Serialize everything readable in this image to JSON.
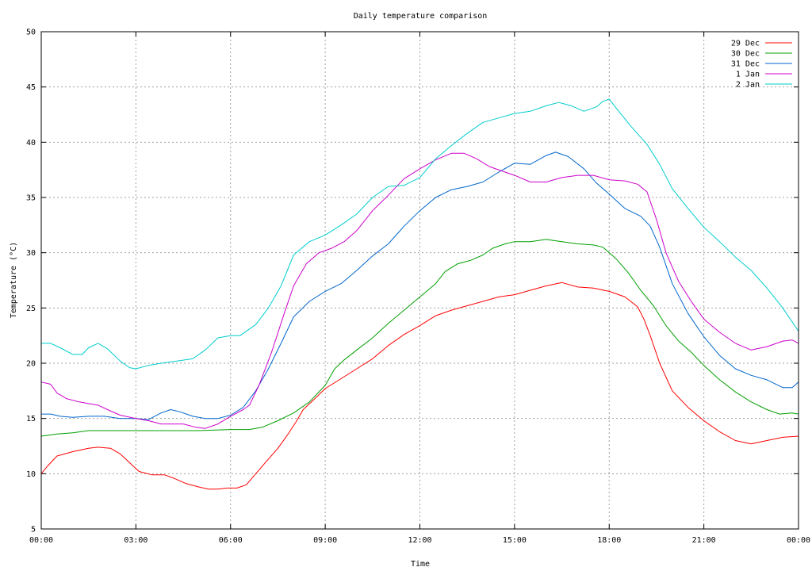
{
  "chart_data": {
    "type": "line",
    "title": "Daily temperature comparison",
    "xlabel": "Time",
    "ylabel": "Temperature (°C)",
    "xlim": [
      0,
      24
    ],
    "ylim": [
      5,
      50
    ],
    "x_ticks": [
      {
        "value": 0,
        "label": "00:00"
      },
      {
        "value": 3,
        "label": "03:00"
      },
      {
        "value": 6,
        "label": "06:00"
      },
      {
        "value": 9,
        "label": "09:00"
      },
      {
        "value": 12,
        "label": "12:00"
      },
      {
        "value": 15,
        "label": "15:00"
      },
      {
        "value": 18,
        "label": "18:00"
      },
      {
        "value": 21,
        "label": "21:00"
      },
      {
        "value": 24,
        "label": "00:00"
      }
    ],
    "y_ticks": [
      5,
      10,
      15,
      20,
      25,
      30,
      35,
      40,
      45,
      50
    ],
    "grid": true,
    "legend_position": "top-right",
    "series": [
      {
        "name": "29 Dec",
        "color": "#ff0000",
        "points": [
          [
            0,
            10
          ],
          [
            0.2,
            10.7
          ],
          [
            0.5,
            11.6
          ],
          [
            1,
            12
          ],
          [
            1.5,
            12.3
          ],
          [
            1.8,
            12.4
          ],
          [
            2.2,
            12.3
          ],
          [
            2.5,
            11.8
          ],
          [
            2.8,
            11
          ],
          [
            3.1,
            10.2
          ],
          [
            3.5,
            9.9
          ],
          [
            3.9,
            9.9
          ],
          [
            4.2,
            9.6
          ],
          [
            4.6,
            9.1
          ],
          [
            5,
            8.8
          ],
          [
            5.3,
            8.6
          ],
          [
            5.6,
            8.6
          ],
          [
            5.9,
            8.7
          ],
          [
            6.2,
            8.7
          ],
          [
            6.5,
            9
          ],
          [
            6.8,
            10
          ],
          [
            7.1,
            11
          ],
          [
            7.5,
            12.3
          ],
          [
            7.8,
            13.5
          ],
          [
            8.1,
            14.8
          ],
          [
            8.3,
            15.8
          ],
          [
            8.6,
            16.6
          ],
          [
            9,
            17.7
          ],
          [
            9.5,
            18.6
          ],
          [
            10,
            19.5
          ],
          [
            10.5,
            20.4
          ],
          [
            11,
            21.6
          ],
          [
            11.5,
            22.6
          ],
          [
            12,
            23.4
          ],
          [
            12.5,
            24.3
          ],
          [
            13,
            24.8
          ],
          [
            13.5,
            25.2
          ],
          [
            14,
            25.6
          ],
          [
            14.5,
            26
          ],
          [
            15,
            26.2
          ],
          [
            15.5,
            26.6
          ],
          [
            16,
            27
          ],
          [
            16.5,
            27.3
          ],
          [
            17,
            26.9
          ],
          [
            17.5,
            26.8
          ],
          [
            18,
            26.5
          ],
          [
            18.5,
            26
          ],
          [
            18.9,
            25.1
          ],
          [
            19.1,
            24
          ],
          [
            19.3,
            22.5
          ],
          [
            19.6,
            20
          ],
          [
            20,
            17.5
          ],
          [
            20.5,
            16
          ],
          [
            21,
            14.8
          ],
          [
            21.5,
            13.8
          ],
          [
            22,
            13
          ],
          [
            22.5,
            12.7
          ],
          [
            23,
            13
          ],
          [
            23.5,
            13.3
          ],
          [
            24,
            13.4
          ]
        ]
      },
      {
        "name": "30 Dec",
        "color": "#00a000",
        "points": [
          [
            0,
            13.4
          ],
          [
            0.5,
            13.6
          ],
          [
            1,
            13.7
          ],
          [
            1.5,
            13.9
          ],
          [
            2,
            13.9
          ],
          [
            3,
            13.9
          ],
          [
            4,
            13.9
          ],
          [
            5,
            13.9
          ],
          [
            6,
            14
          ],
          [
            6.6,
            14
          ],
          [
            7,
            14.2
          ],
          [
            7.5,
            14.8
          ],
          [
            8,
            15.5
          ],
          [
            8.5,
            16.5
          ],
          [
            9,
            18
          ],
          [
            9.3,
            19.5
          ],
          [
            9.6,
            20.3
          ],
          [
            10,
            21.2
          ],
          [
            10.5,
            22.3
          ],
          [
            11,
            23.6
          ],
          [
            11.5,
            24.8
          ],
          [
            12,
            26
          ],
          [
            12.5,
            27.2
          ],
          [
            12.8,
            28.3
          ],
          [
            13.2,
            29
          ],
          [
            13.6,
            29.3
          ],
          [
            14,
            29.8
          ],
          [
            14.3,
            30.4
          ],
          [
            14.7,
            30.8
          ],
          [
            15,
            31
          ],
          [
            15.5,
            31
          ],
          [
            16,
            31.2
          ],
          [
            16.5,
            31
          ],
          [
            17,
            30.8
          ],
          [
            17.5,
            30.7
          ],
          [
            17.8,
            30.5
          ],
          [
            18.2,
            29.5
          ],
          [
            18.6,
            28.2
          ],
          [
            19,
            26.6
          ],
          [
            19.4,
            25.2
          ],
          [
            19.8,
            23.4
          ],
          [
            20.2,
            22
          ],
          [
            20.6,
            21
          ],
          [
            21,
            19.8
          ],
          [
            21.5,
            18.5
          ],
          [
            22,
            17.4
          ],
          [
            22.5,
            16.5
          ],
          [
            23,
            15.8
          ],
          [
            23.4,
            15.4
          ],
          [
            23.8,
            15.5
          ],
          [
            24,
            15.4
          ]
        ]
      },
      {
        "name": "31 Dec",
        "color": "#0066cc",
        "points": [
          [
            0,
            15.4
          ],
          [
            0.3,
            15.4
          ],
          [
            0.6,
            15.2
          ],
          [
            1,
            15.1
          ],
          [
            1.5,
            15.2
          ],
          [
            2,
            15.2
          ],
          [
            2.5,
            15
          ],
          [
            3,
            15
          ],
          [
            3.4,
            14.9
          ],
          [
            3.8,
            15.5
          ],
          [
            4.1,
            15.8
          ],
          [
            4.4,
            15.6
          ],
          [
            4.8,
            15.2
          ],
          [
            5.2,
            15
          ],
          [
            5.6,
            15
          ],
          [
            6,
            15.3
          ],
          [
            6.4,
            16
          ],
          [
            6.8,
            17.5
          ],
          [
            7.2,
            19.5
          ],
          [
            7.6,
            21.8
          ],
          [
            8,
            24.2
          ],
          [
            8.5,
            25.6
          ],
          [
            9,
            26.5
          ],
          [
            9.5,
            27.2
          ],
          [
            10,
            28.4
          ],
          [
            10.5,
            29.7
          ],
          [
            11,
            30.8
          ],
          [
            11.5,
            32.4
          ],
          [
            12,
            33.8
          ],
          [
            12.5,
            35
          ],
          [
            13,
            35.7
          ],
          [
            13.5,
            36
          ],
          [
            14,
            36.4
          ],
          [
            14.5,
            37.3
          ],
          [
            15,
            38.1
          ],
          [
            15.5,
            38
          ],
          [
            16,
            38.8
          ],
          [
            16.3,
            39.1
          ],
          [
            16.7,
            38.7
          ],
          [
            17.2,
            37.6
          ],
          [
            17.6,
            36.3
          ],
          [
            18,
            35.3
          ],
          [
            18.5,
            34
          ],
          [
            19,
            33.3
          ],
          [
            19.3,
            32.4
          ],
          [
            19.6,
            30.5
          ],
          [
            20,
            27.2
          ],
          [
            20.5,
            24.5
          ],
          [
            21,
            22.4
          ],
          [
            21.5,
            20.7
          ],
          [
            22,
            19.5
          ],
          [
            22.5,
            18.9
          ],
          [
            23,
            18.5
          ],
          [
            23.5,
            17.8
          ],
          [
            23.8,
            17.8
          ],
          [
            24,
            18.3
          ]
        ]
      },
      {
        "name": "1 Jan",
        "color": "#cc00cc",
        "points": [
          [
            0,
            18.3
          ],
          [
            0.3,
            18.1
          ],
          [
            0.5,
            17.3
          ],
          [
            0.8,
            16.8
          ],
          [
            1.2,
            16.5
          ],
          [
            1.8,
            16.2
          ],
          [
            2.1,
            15.8
          ],
          [
            2.5,
            15.3
          ],
          [
            3,
            15
          ],
          [
            3.4,
            14.8
          ],
          [
            3.8,
            14.5
          ],
          [
            4.2,
            14.5
          ],
          [
            4.5,
            14.5
          ],
          [
            4.9,
            14.2
          ],
          [
            5.2,
            14.1
          ],
          [
            5.6,
            14.5
          ],
          [
            6,
            15.2
          ],
          [
            6.4,
            15.8
          ],
          [
            6.6,
            16.2
          ],
          [
            6.9,
            18
          ],
          [
            7.3,
            21
          ],
          [
            7.7,
            24.5
          ],
          [
            8,
            27
          ],
          [
            8.4,
            29
          ],
          [
            8.8,
            30
          ],
          [
            9.2,
            30.4
          ],
          [
            9.6,
            31
          ],
          [
            10,
            32
          ],
          [
            10.5,
            33.8
          ],
          [
            11,
            35.2
          ],
          [
            11.5,
            36.7
          ],
          [
            12,
            37.6
          ],
          [
            12.5,
            38.4
          ],
          [
            13,
            39
          ],
          [
            13.4,
            39
          ],
          [
            13.8,
            38.5
          ],
          [
            14.2,
            37.8
          ],
          [
            14.6,
            37.4
          ],
          [
            15,
            37
          ],
          [
            15.5,
            36.4
          ],
          [
            16,
            36.4
          ],
          [
            16.5,
            36.8
          ],
          [
            17,
            37
          ],
          [
            17.5,
            37
          ],
          [
            18,
            36.6
          ],
          [
            18.5,
            36.5
          ],
          [
            18.9,
            36.2
          ],
          [
            19.2,
            35.5
          ],
          [
            19.5,
            33
          ],
          [
            19.8,
            30
          ],
          [
            20.2,
            27.4
          ],
          [
            20.6,
            25.6
          ],
          [
            21,
            24
          ],
          [
            21.5,
            22.8
          ],
          [
            22,
            21.8
          ],
          [
            22.5,
            21.2
          ],
          [
            23,
            21.5
          ],
          [
            23.5,
            22
          ],
          [
            23.8,
            22.1
          ],
          [
            24,
            21.8
          ]
        ]
      },
      {
        "name": "2 Jan",
        "color": "#00cccc",
        "points": [
          [
            0,
            21.8
          ],
          [
            0.3,
            21.8
          ],
          [
            0.6,
            21.4
          ],
          [
            1,
            20.8
          ],
          [
            1.3,
            20.8
          ],
          [
            1.5,
            21.4
          ],
          [
            1.8,
            21.8
          ],
          [
            2.1,
            21.3
          ],
          [
            2.5,
            20.2
          ],
          [
            2.8,
            19.6
          ],
          [
            3,
            19.5
          ],
          [
            3.4,
            19.8
          ],
          [
            3.8,
            20
          ],
          [
            4.3,
            20.2
          ],
          [
            4.8,
            20.4
          ],
          [
            5.2,
            21.2
          ],
          [
            5.6,
            22.3
          ],
          [
            6,
            22.5
          ],
          [
            6.3,
            22.5
          ],
          [
            6.8,
            23.5
          ],
          [
            7.2,
            25
          ],
          [
            7.6,
            27
          ],
          [
            8,
            29.8
          ],
          [
            8.5,
            31
          ],
          [
            9,
            31.6
          ],
          [
            9.5,
            32.5
          ],
          [
            10,
            33.5
          ],
          [
            10.5,
            35
          ],
          [
            11,
            36
          ],
          [
            11.5,
            36.1
          ],
          [
            12,
            36.8
          ],
          [
            12.5,
            38.5
          ],
          [
            13,
            39.7
          ],
          [
            13.5,
            40.8
          ],
          [
            14,
            41.8
          ],
          [
            14.5,
            42.2
          ],
          [
            15,
            42.6
          ],
          [
            15.5,
            42.8
          ],
          [
            16,
            43.3
          ],
          [
            16.4,
            43.6
          ],
          [
            16.8,
            43.3
          ],
          [
            17.2,
            42.8
          ],
          [
            17.6,
            43.2
          ],
          [
            17.8,
            43.7
          ],
          [
            18,
            43.9
          ],
          [
            18.3,
            42.8
          ],
          [
            18.7,
            41.4
          ],
          [
            19.2,
            39.8
          ],
          [
            19.6,
            38
          ],
          [
            20,
            35.8
          ],
          [
            20.5,
            34
          ],
          [
            21,
            32.3
          ],
          [
            21.5,
            31
          ],
          [
            22,
            29.6
          ],
          [
            22.5,
            28.4
          ],
          [
            23,
            26.8
          ],
          [
            23.5,
            25
          ],
          [
            24,
            22.9
          ]
        ]
      }
    ]
  }
}
